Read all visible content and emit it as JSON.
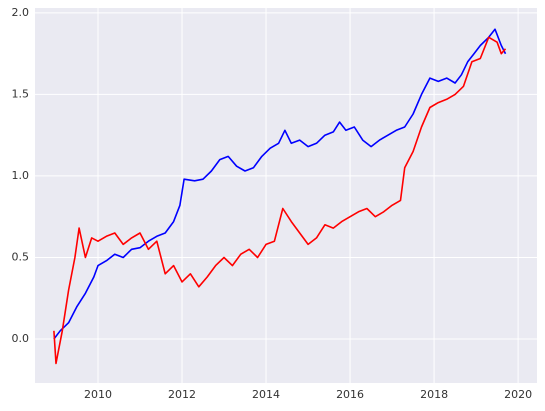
{
  "chart_data": {
    "type": "line",
    "xlim": [
      2008.5,
      2020.45
    ],
    "ylim": [
      -0.27,
      2.03
    ],
    "xticks": [
      2010,
      2012,
      2014,
      2016,
      2018,
      2020
    ],
    "yticks": [
      {
        "value": 0,
        "label": "0.0"
      },
      {
        "value": 0.5,
        "label": "0.5"
      },
      {
        "value": 1,
        "label": "1.0"
      },
      {
        "value": 1.5,
        "label": "1.5"
      },
      {
        "value": 2,
        "label": "2.0"
      }
    ],
    "grid": true,
    "series": [
      {
        "color": "#0000ff",
        "x": [
          2008.95,
          2009.1,
          2009.3,
          2009.5,
          2009.7,
          2009.9,
          2010.0,
          2010.2,
          2010.4,
          2010.6,
          2010.8,
          2011.0,
          2011.2,
          2011.4,
          2011.6,
          2011.8,
          2011.95,
          2012.05,
          2012.3,
          2012.5,
          2012.7,
          2012.9,
          2013.1,
          2013.3,
          2013.5,
          2013.7,
          2013.9,
          2014.1,
          2014.3,
          2014.45,
          2014.6,
          2014.8,
          2015.0,
          2015.2,
          2015.4,
          2015.6,
          2015.75,
          2015.9,
          2016.1,
          2016.3,
          2016.5,
          2016.7,
          2016.9,
          2017.1,
          2017.3,
          2017.5,
          2017.7,
          2017.9,
          2018.1,
          2018.3,
          2018.5,
          2018.65,
          2018.8,
          2018.95,
          2019.1,
          2019.3,
          2019.45,
          2019.6,
          2019.7
        ],
        "values": [
          0.0,
          0.05,
          0.1,
          0.2,
          0.28,
          0.38,
          0.45,
          0.48,
          0.52,
          0.5,
          0.55,
          0.56,
          0.6,
          0.63,
          0.65,
          0.72,
          0.82,
          0.98,
          0.97,
          0.98,
          1.03,
          1.1,
          1.12,
          1.06,
          1.03,
          1.05,
          1.12,
          1.17,
          1.2,
          1.28,
          1.2,
          1.22,
          1.18,
          1.2,
          1.25,
          1.27,
          1.33,
          1.28,
          1.3,
          1.22,
          1.18,
          1.22,
          1.25,
          1.28,
          1.3,
          1.38,
          1.5,
          1.6,
          1.58,
          1.6,
          1.57,
          1.62,
          1.7,
          1.75,
          1.8,
          1.85,
          1.9,
          1.8,
          1.75
        ]
      },
      {
        "color": "#ff0000",
        "x": [
          2008.95,
          2009.0,
          2009.15,
          2009.3,
          2009.45,
          2009.55,
          2009.7,
          2009.85,
          2010.0,
          2010.2,
          2010.4,
          2010.6,
          2010.8,
          2011.0,
          2011.2,
          2011.4,
          2011.6,
          2011.8,
          2012.0,
          2012.2,
          2012.4,
          2012.6,
          2012.8,
          2013.0,
          2013.2,
          2013.4,
          2013.6,
          2013.8,
          2014.0,
          2014.2,
          2014.4,
          2014.6,
          2014.8,
          2015.0,
          2015.2,
          2015.4,
          2015.6,
          2015.8,
          2016.0,
          2016.2,
          2016.4,
          2016.6,
          2016.8,
          2017.0,
          2017.2,
          2017.3,
          2017.5,
          2017.7,
          2017.9,
          2018.1,
          2018.3,
          2018.5,
          2018.7,
          2018.9,
          2019.1,
          2019.3,
          2019.5,
          2019.6,
          2019.7
        ],
        "values": [
          0.05,
          -0.15,
          0.05,
          0.3,
          0.5,
          0.68,
          0.5,
          0.62,
          0.6,
          0.63,
          0.65,
          0.58,
          0.62,
          0.65,
          0.55,
          0.6,
          0.4,
          0.45,
          0.35,
          0.4,
          0.32,
          0.38,
          0.45,
          0.5,
          0.45,
          0.52,
          0.55,
          0.5,
          0.58,
          0.6,
          0.8,
          0.72,
          0.65,
          0.58,
          0.62,
          0.7,
          0.68,
          0.72,
          0.75,
          0.78,
          0.8,
          0.75,
          0.78,
          0.82,
          0.85,
          1.05,
          1.15,
          1.3,
          1.42,
          1.45,
          1.47,
          1.5,
          1.55,
          1.7,
          1.72,
          1.85,
          1.82,
          1.75,
          1.78
        ]
      }
    ]
  }
}
